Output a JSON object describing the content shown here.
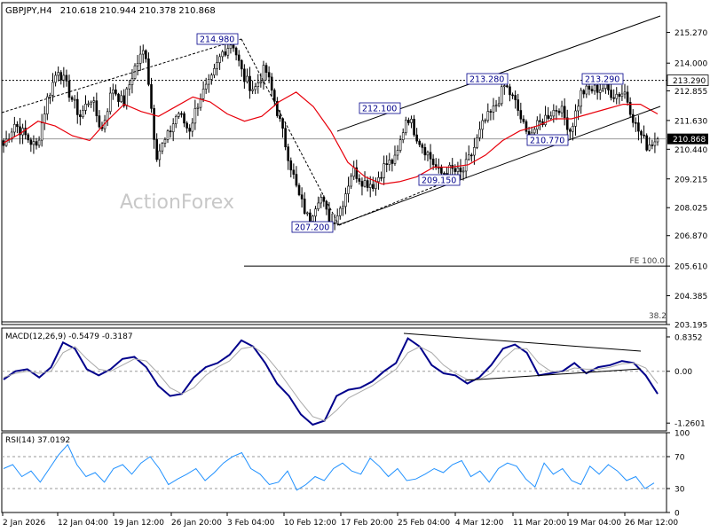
{
  "header": {
    "symbol_timeframe": "GBPJPY,H4",
    "ohlc": "210.618 210.944 210.378 210.868"
  },
  "watermark": "ActionForex",
  "colors": {
    "candle": "#000000",
    "ma": "#e8000b",
    "macd_line": "#00008b",
    "macd_signal": "#a9a9a9",
    "rsi": "#1e90ff",
    "price_hline": "#9a9a9a",
    "trend": "#000000",
    "label_box_border": "#00008b",
    "label_text": "#00008b",
    "current_price_bg": "#000000",
    "current_price_text": "#ffffff"
  },
  "x_axis_labels": [
    "2 Jan 2026",
    "12 Jan 04:00",
    "19 Jan 12:00",
    "26 Jan 20:00",
    "3 Feb 04:00",
    "10 Feb 12:00",
    "17 Feb 20:00",
    "25 Feb 04:00",
    "4 Mar 12:00",
    "11 Mar 20:00",
    "19 Mar 04:00",
    "26 Mar 12:00"
  ],
  "chart_data": [
    {
      "type": "candlestick",
      "title": "GBPJPY,H4",
      "ylim": [
        203.195,
        216.5
      ],
      "y_ticks": [
        "215.270",
        "214.000",
        "212.855",
        "211.630",
        "210.440",
        "209.215",
        "208.025",
        "206.870",
        "205.610",
        "204.385",
        "203.195"
      ],
      "hlines": [
        {
          "label": "213.290",
          "value": 213.29
        },
        {
          "label": "210.868",
          "value": 210.868
        },
        {
          "label": "FE 100.0",
          "value": 205.61
        },
        {
          "label": "38.2",
          "value": 203.25
        }
      ],
      "price_labels": [
        {
          "text": "214.980",
          "value": 214.98
        },
        {
          "text": "212.100",
          "value": 212.1
        },
        {
          "text": "213.280",
          "value": 213.28
        },
        {
          "text": "213.290",
          "value": 213.29
        },
        {
          "text": "210.770",
          "value": 210.77
        },
        {
          "text": "209.150",
          "value": 209.15
        },
        {
          "text": "207.200",
          "value": 207.2
        }
      ],
      "close_path": [
        210.6,
        211.5,
        211.0,
        210.5,
        212.5,
        213.8,
        212.8,
        211.8,
        212.6,
        211.2,
        213.0,
        212.3,
        213.8,
        214.6,
        210.2,
        210.9,
        212.0,
        211.2,
        212.6,
        213.2,
        214.4,
        214.9,
        213.4,
        212.9,
        213.8,
        212.2,
        210.4,
        208.6,
        207.5,
        208.6,
        207.3,
        208.1,
        209.6,
        209.1,
        209.0,
        209.8,
        210.0,
        211.9,
        210.9,
        210.2,
        209.4,
        209.6,
        209.4,
        210.3,
        211.5,
        212.1,
        213.1,
        212.3,
        211.0,
        211.4,
        211.9,
        212.2,
        211.2,
        212.8,
        212.9,
        213.0,
        212.7,
        212.8,
        211.4,
        210.6,
        210.868
      ],
      "ma_path": [
        210.7,
        211.1,
        211.6,
        211.4,
        211.0,
        210.8,
        211.6,
        212.3,
        212.0,
        211.8,
        212.2,
        212.6,
        212.4,
        211.9,
        211.6,
        211.8,
        212.4,
        212.8,
        212.2,
        211.2,
        209.9,
        209.3,
        209.0,
        209.1,
        209.3,
        209.7,
        209.7,
        209.8,
        210.2,
        210.8,
        211.2,
        211.4,
        211.7,
        211.7,
        211.9,
        212.1,
        212.3,
        212.3,
        211.9
      ]
    },
    {
      "type": "line",
      "title": "MACD(12,26,9) -0.5479 -0.3187",
      "ylim": [
        -1.45,
        1.05
      ],
      "y_ticks": [
        "0.8352",
        "0.00",
        "-1.2601"
      ],
      "series": [
        {
          "name": "MACD",
          "values": [
            -0.2,
            0.0,
            0.05,
            -0.15,
            0.1,
            0.7,
            0.55,
            0.05,
            -0.1,
            0.05,
            0.3,
            0.35,
            0.1,
            -0.35,
            -0.6,
            -0.55,
            -0.15,
            0.1,
            0.2,
            0.4,
            0.75,
            0.6,
            0.2,
            -0.3,
            -0.6,
            -1.05,
            -1.3,
            -1.2,
            -0.6,
            -0.45,
            -0.4,
            -0.25,
            0.0,
            0.2,
            0.8,
            0.6,
            0.15,
            -0.05,
            -0.1,
            -0.3,
            -0.15,
            0.15,
            0.55,
            0.65,
            0.45,
            -0.1,
            -0.05,
            0.0,
            0.2,
            -0.05,
            0.1,
            0.15,
            0.25,
            0.2,
            -0.1,
            -0.55
          ]
        },
        {
          "name": "Signal",
          "values": [
            -0.15,
            -0.05,
            0.0,
            -0.05,
            0.0,
            0.45,
            0.6,
            0.3,
            0.05,
            0.0,
            0.15,
            0.3,
            0.25,
            -0.05,
            -0.4,
            -0.55,
            -0.4,
            -0.1,
            0.1,
            0.25,
            0.55,
            0.6,
            0.4,
            0.05,
            -0.35,
            -0.75,
            -1.1,
            -1.2,
            -0.95,
            -0.65,
            -0.5,
            -0.35,
            -0.15,
            0.05,
            0.45,
            0.6,
            0.45,
            0.15,
            -0.05,
            -0.2,
            -0.2,
            -0.05,
            0.3,
            0.55,
            0.55,
            0.2,
            0.0,
            -0.02,
            0.08,
            0.05,
            0.05,
            0.1,
            0.18,
            0.2,
            0.08,
            -0.3
          ]
        }
      ]
    },
    {
      "type": "line",
      "title": "RSI(14) 37.0192",
      "ylim": [
        0,
        100
      ],
      "y_ticks": [
        "100",
        "70",
        "30",
        "0"
      ],
      "series": [
        {
          "name": "RSI(14)",
          "values": [
            55,
            60,
            45,
            52,
            38,
            55,
            72,
            85,
            60,
            45,
            50,
            38,
            55,
            60,
            48,
            62,
            70,
            55,
            35,
            42,
            48,
            55,
            40,
            50,
            62,
            70,
            75,
            55,
            48,
            35,
            38,
            52,
            28,
            35,
            45,
            40,
            55,
            62,
            52,
            48,
            68,
            58,
            45,
            55,
            40,
            42,
            48,
            55,
            50,
            60,
            65,
            45,
            52,
            38,
            55,
            62,
            58,
            42,
            32,
            62,
            48,
            55,
            40,
            35,
            58,
            48,
            60,
            52,
            40,
            45,
            30,
            37
          ]
        }
      ]
    }
  ]
}
